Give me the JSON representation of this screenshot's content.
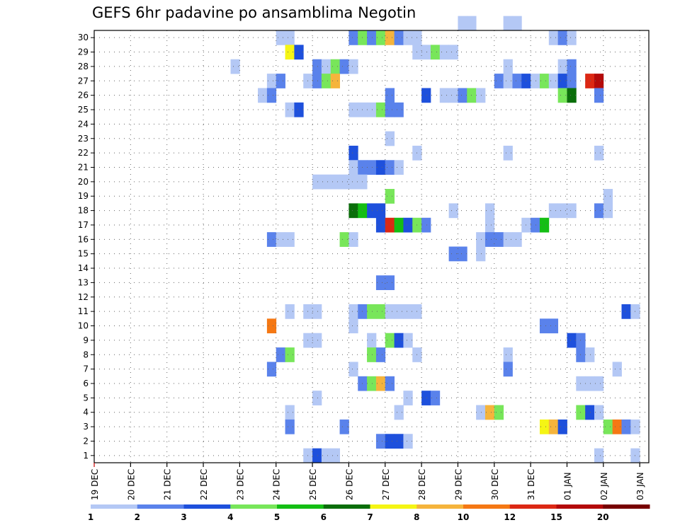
{
  "chart_data": {
    "type": "heatmap",
    "title": "GEFS 6hr padavine po ansamblima Negotin",
    "xlabel": "",
    "ylabel": "",
    "x_unit": "6-hour steps from 19 DEC 00Z",
    "x_range": [
      0,
      61
    ],
    "y_range": [
      0,
      30
    ],
    "y_ticks": [
      "1",
      "2",
      "3",
      "4",
      "5",
      "6",
      "7",
      "8",
      "9",
      "10",
      "11",
      "12",
      "13",
      "14",
      "15",
      "16",
      "17",
      "18",
      "19",
      "20",
      "21",
      "22",
      "23",
      "24",
      "25",
      "26",
      "27",
      "28",
      "29",
      "30"
    ],
    "x_ticks": [
      {
        "label": "19 DEC",
        "step": 0
      },
      {
        "label": "20 DEC",
        "step": 4
      },
      {
        "label": "21 DEC",
        "step": 8
      },
      {
        "label": "22 DEC",
        "step": 12
      },
      {
        "label": "23 DEC",
        "step": 16
      },
      {
        "label": "24 DEC",
        "step": 20
      },
      {
        "label": "25 DEC",
        "step": 24
      },
      {
        "label": "26 DEC",
        "step": 28
      },
      {
        "label": "27 DEC",
        "step": 32
      },
      {
        "label": "28 DEC",
        "step": 36
      },
      {
        "label": "29 DEC",
        "step": 40
      },
      {
        "label": "30 DEC",
        "step": 44
      },
      {
        "label": "31 DEC",
        "step": 48
      },
      {
        "label": "01 JAN",
        "step": 52
      },
      {
        "label": "02 JAN",
        "step": 56
      },
      {
        "label": "03 JAN",
        "step": 60
      }
    ],
    "grid": true,
    "legend": {
      "placement": "bottom",
      "labels": [
        "1",
        "2",
        "3",
        "4",
        "5",
        "6",
        "7",
        "8",
        "10",
        "12",
        "15",
        "20"
      ],
      "colors": [
        "#b4c8f5",
        "#5a82eb",
        "#1e50dc",
        "#78e65a",
        "#14be14",
        "#0a6e0a",
        "#f5f514",
        "#f5b43c",
        "#f57814",
        "#dc2814",
        "#b40a0a",
        "#780000"
      ]
    },
    "cells": [
      [
        40,
        30,
        0
      ],
      [
        41,
        30,
        0
      ],
      [
        45,
        30,
        0
      ],
      [
        46,
        30,
        0
      ],
      [
        20,
        29,
        0
      ],
      [
        21,
        29,
        0
      ],
      [
        28,
        29,
        1
      ],
      [
        29,
        29,
        3
      ],
      [
        30,
        29,
        1
      ],
      [
        31,
        29,
        3
      ],
      [
        32,
        29,
        7
      ],
      [
        33,
        29,
        1
      ],
      [
        34,
        29,
        0
      ],
      [
        35,
        29,
        0
      ],
      [
        50,
        29,
        0
      ],
      [
        51,
        29,
        1
      ],
      [
        52,
        29,
        0
      ],
      [
        21,
        28,
        6
      ],
      [
        22,
        28,
        2
      ],
      [
        35,
        28,
        0
      ],
      [
        36,
        28,
        0
      ],
      [
        37,
        28,
        3
      ],
      [
        38,
        28,
        0
      ],
      [
        39,
        28,
        0
      ],
      [
        15,
        27,
        0
      ],
      [
        24,
        27,
        1
      ],
      [
        25,
        27,
        0
      ],
      [
        26,
        27,
        3
      ],
      [
        27,
        27,
        1
      ],
      [
        28,
        27,
        0
      ],
      [
        45,
        27,
        0
      ],
      [
        51,
        27,
        0
      ],
      [
        52,
        27,
        1
      ],
      [
        19,
        26,
        0
      ],
      [
        20,
        26,
        1
      ],
      [
        23,
        26,
        0
      ],
      [
        24,
        26,
        1
      ],
      [
        25,
        26,
        3
      ],
      [
        26,
        26,
        7
      ],
      [
        44,
        26,
        1
      ],
      [
        45,
        26,
        0
      ],
      [
        46,
        26,
        1
      ],
      [
        47,
        26,
        2
      ],
      [
        48,
        26,
        0
      ],
      [
        49,
        26,
        3
      ],
      [
        50,
        26,
        0
      ],
      [
        51,
        26,
        2
      ],
      [
        52,
        26,
        1
      ],
      [
        54,
        26,
        9
      ],
      [
        55,
        26,
        10
      ],
      [
        18,
        25,
        0
      ],
      [
        19,
        25,
        1
      ],
      [
        32,
        25,
        1
      ],
      [
        36,
        25,
        2
      ],
      [
        38,
        25,
        0
      ],
      [
        39,
        25,
        0
      ],
      [
        40,
        25,
        1
      ],
      [
        41,
        25,
        3
      ],
      [
        42,
        25,
        0
      ],
      [
        51,
        25,
        3
      ],
      [
        52,
        25,
        5
      ],
      [
        55,
        25,
        1
      ],
      [
        21,
        24,
        0
      ],
      [
        22,
        24,
        2
      ],
      [
        28,
        24,
        0
      ],
      [
        29,
        24,
        0
      ],
      [
        30,
        24,
        0
      ],
      [
        31,
        24,
        3
      ],
      [
        32,
        24,
        1
      ],
      [
        33,
        24,
        1
      ],
      [
        32,
        22,
        0
      ],
      [
        28,
        21,
        2
      ],
      [
        35,
        21,
        0
      ],
      [
        45,
        21,
        0
      ],
      [
        55,
        21,
        0
      ],
      [
        28,
        20,
        0
      ],
      [
        29,
        20,
        1
      ],
      [
        30,
        20,
        1
      ],
      [
        31,
        20,
        2
      ],
      [
        32,
        20,
        1
      ],
      [
        33,
        20,
        0
      ],
      [
        24,
        19,
        0
      ],
      [
        25,
        19,
        0
      ],
      [
        26,
        19,
        0
      ],
      [
        27,
        19,
        0
      ],
      [
        28,
        19,
        0
      ],
      [
        29,
        19,
        0
      ],
      [
        32,
        18,
        3
      ],
      [
        56,
        18,
        0
      ],
      [
        28,
        17,
        5
      ],
      [
        29,
        17,
        4
      ],
      [
        30,
        17,
        2
      ],
      [
        31,
        17,
        2
      ],
      [
        39,
        17,
        0
      ],
      [
        43,
        17,
        0
      ],
      [
        50,
        17,
        0
      ],
      [
        51,
        17,
        0
      ],
      [
        52,
        17,
        0
      ],
      [
        55,
        17,
        1
      ],
      [
        56,
        17,
        0
      ],
      [
        31,
        16,
        2
      ],
      [
        32,
        16,
        9
      ],
      [
        33,
        16,
        4
      ],
      [
        34,
        16,
        2
      ],
      [
        35,
        16,
        3
      ],
      [
        36,
        16,
        1
      ],
      [
        43,
        16,
        0
      ],
      [
        47,
        16,
        0
      ],
      [
        48,
        16,
        1
      ],
      [
        49,
        16,
        4
      ],
      [
        19,
        15,
        1
      ],
      [
        20,
        15,
        0
      ],
      [
        21,
        15,
        0
      ],
      [
        27,
        15,
        3
      ],
      [
        28,
        15,
        0
      ],
      [
        42,
        15,
        0
      ],
      [
        43,
        15,
        1
      ],
      [
        44,
        15,
        1
      ],
      [
        45,
        15,
        0
      ],
      [
        46,
        15,
        0
      ],
      [
        39,
        14,
        1
      ],
      [
        40,
        14,
        1
      ],
      [
        42,
        14,
        0
      ],
      [
        31,
        12,
        1
      ],
      [
        32,
        12,
        1
      ],
      [
        21,
        10,
        0
      ],
      [
        23,
        10,
        0
      ],
      [
        24,
        10,
        0
      ],
      [
        28,
        10,
        0
      ],
      [
        29,
        10,
        1
      ],
      [
        30,
        10,
        3
      ],
      [
        31,
        10,
        3
      ],
      [
        32,
        10,
        0
      ],
      [
        33,
        10,
        0
      ],
      [
        34,
        10,
        0
      ],
      [
        35,
        10,
        0
      ],
      [
        58,
        10,
        2
      ],
      [
        59,
        10,
        0
      ],
      [
        19,
        9,
        8
      ],
      [
        28,
        9,
        0
      ],
      [
        49,
        9,
        1
      ],
      [
        50,
        9,
        1
      ],
      [
        23,
        8,
        0
      ],
      [
        24,
        8,
        0
      ],
      [
        30,
        8,
        0
      ],
      [
        32,
        8,
        3
      ],
      [
        33,
        8,
        2
      ],
      [
        34,
        8,
        0
      ],
      [
        52,
        8,
        2
      ],
      [
        53,
        8,
        1
      ],
      [
        20,
        7,
        1
      ],
      [
        21,
        7,
        3
      ],
      [
        30,
        7,
        3
      ],
      [
        31,
        7,
        1
      ],
      [
        35,
        7,
        0
      ],
      [
        45,
        7,
        0
      ],
      [
        53,
        7,
        1
      ],
      [
        54,
        7,
        0
      ],
      [
        19,
        6,
        1
      ],
      [
        28,
        6,
        0
      ],
      [
        45,
        6,
        1
      ],
      [
        57,
        6,
        0
      ],
      [
        29,
        5,
        1
      ],
      [
        30,
        5,
        3
      ],
      [
        31,
        5,
        7
      ],
      [
        32,
        5,
        1
      ],
      [
        53,
        5,
        0
      ],
      [
        54,
        5,
        0
      ],
      [
        55,
        5,
        0
      ],
      [
        24,
        4,
        0
      ],
      [
        34,
        4,
        0
      ],
      [
        36,
        4,
        2
      ],
      [
        37,
        4,
        1
      ],
      [
        21,
        3,
        0
      ],
      [
        33,
        3,
        0
      ],
      [
        42,
        3,
        0
      ],
      [
        43,
        3,
        7
      ],
      [
        44,
        3,
        3
      ],
      [
        53,
        3,
        3
      ],
      [
        54,
        3,
        2
      ],
      [
        55,
        3,
        0
      ],
      [
        21,
        2,
        1
      ],
      [
        27,
        2,
        1
      ],
      [
        49,
        2,
        6
      ],
      [
        50,
        2,
        7
      ],
      [
        51,
        2,
        2
      ],
      [
        56,
        2,
        3
      ],
      [
        57,
        2,
        8
      ],
      [
        58,
        2,
        1
      ],
      [
        59,
        2,
        0
      ],
      [
        31,
        1,
        1
      ],
      [
        32,
        1,
        2
      ],
      [
        33,
        1,
        2
      ],
      [
        34,
        1,
        0
      ],
      [
        23,
        0,
        0
      ],
      [
        24,
        0,
        2
      ],
      [
        25,
        0,
        0
      ],
      [
        26,
        0,
        0
      ],
      [
        55,
        0,
        0
      ],
      [
        59,
        0,
        0
      ]
    ]
  }
}
